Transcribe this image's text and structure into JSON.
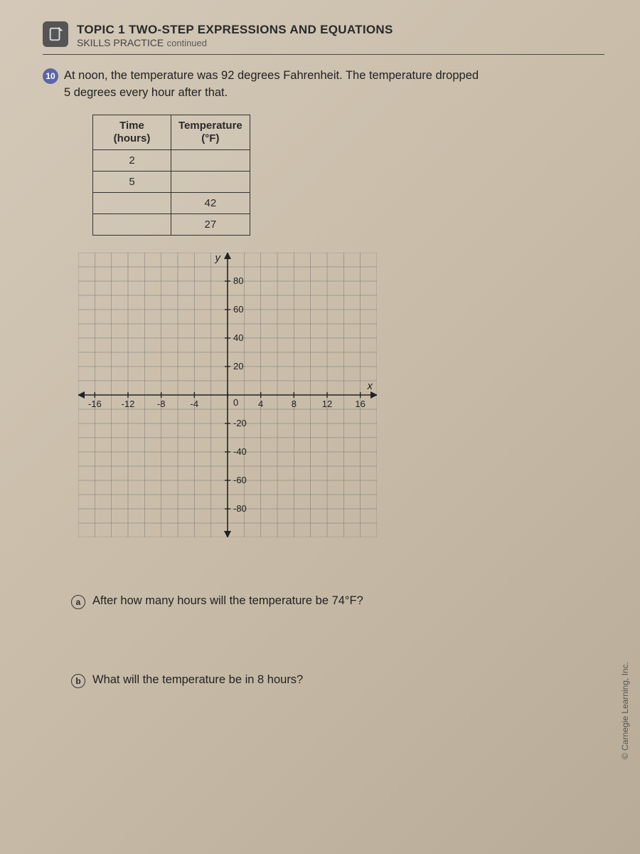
{
  "header": {
    "topic": "TOPIC 1 TWO-STEP EXPRESSIONS AND EQUATIONS",
    "subtitle": "SKILLS PRACTICE",
    "continued": "continued"
  },
  "problem": {
    "number": "10",
    "text_line1": "At noon, the temperature was 92 degrees Fahrenheit. The temperature dropped",
    "text_line2": "5 degrees every hour after that."
  },
  "table": {
    "col1_header_l1": "Time",
    "col1_header_l2": "(hours)",
    "col2_header_l1": "Temperature",
    "col2_header_l2": "(°F)",
    "rows": [
      {
        "time": "2",
        "temp": ""
      },
      {
        "time": "5",
        "temp": ""
      },
      {
        "time": "",
        "temp": "42"
      },
      {
        "time": "",
        "temp": "27"
      }
    ]
  },
  "graph": {
    "y_label": "y",
    "x_label": "x",
    "x_ticks": [
      "-16",
      "-12",
      "-8",
      "-4",
      "0",
      "4",
      "8",
      "12",
      "16"
    ],
    "y_ticks_pos": [
      "80",
      "60",
      "40",
      "20"
    ],
    "y_ticks_neg": [
      "-20",
      "-40",
      "-60",
      "-80"
    ],
    "xlim": [
      -18,
      18
    ],
    "ylim": [
      -100,
      100
    ],
    "grid_major_step_x": 4,
    "grid_major_step_y": 20,
    "grid_color": "#666",
    "axis_color": "#222"
  },
  "questions": {
    "a": {
      "letter": "a",
      "text": "After how many hours will the temperature be 74°F?"
    },
    "b": {
      "letter": "b",
      "text": "What will the temperature be in 8 hours?"
    }
  },
  "copyright": "© Carnegie Learning, Inc."
}
